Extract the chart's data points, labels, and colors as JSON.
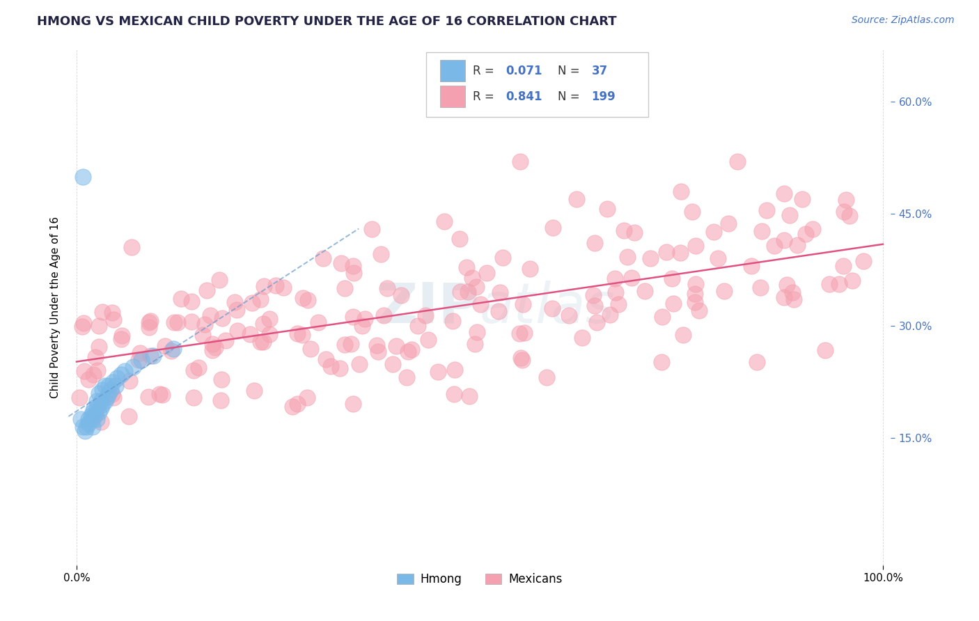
{
  "title": "HMONG VS MEXICAN CHILD POVERTY UNDER THE AGE OF 16 CORRELATION CHART",
  "source_text": "Source: ZipAtlas.com",
  "ylabel": "Child Poverty Under the Age of 16",
  "hmong_color": "#7ab8e8",
  "mexican_color": "#f5a0b0",
  "hmong_trend_color": "#99c4e8",
  "mexican_trend_color": "#e05080",
  "watermark": "ZIPatlas",
  "background_color": "#ffffff",
  "grid_color": "#cccccc",
  "hmong_R": 0.071,
  "hmong_N": 37,
  "mexican_R": 0.841,
  "mexican_N": 199,
  "right_yticks": [
    0.15,
    0.3,
    0.45,
    0.6
  ],
  "right_ytick_labels": [
    "15.0%",
    "30.0%",
    "45.0%",
    "60.0%"
  ],
  "x_tick_labels": [
    "0.0%",
    "100.0%"
  ],
  "axis_label_color": "#4472c4",
  "title_color": "#222244"
}
